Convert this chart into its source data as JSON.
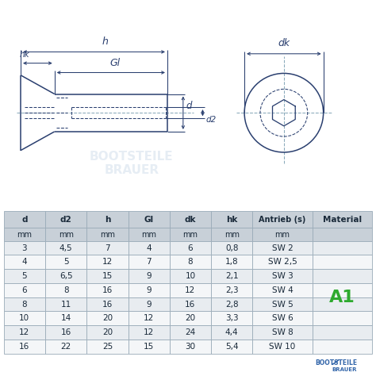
{
  "bg_color": "#ffffff",
  "line_color": "#2a3f6f",
  "table_header_bg": "#c8d0d8",
  "table_row_alt_bg": "#e8ecf0",
  "table_row_bg": "#f4f6f8",
  "table_border_color": "#9aabb8",
  "columns": [
    "d",
    "d2",
    "h",
    "Gl",
    "dk",
    "hk",
    "Antrieb (s)",
    "Material"
  ],
  "col_units": [
    "mm",
    "mm",
    "mm",
    "mm",
    "mm",
    "mm",
    "mm",
    ""
  ],
  "rows": [
    [
      "3",
      "4,5",
      "7",
      "4",
      "6",
      "0,8",
      "SW 2",
      ""
    ],
    [
      "4",
      "5",
      "12",
      "7",
      "8",
      "1,8",
      "SW 2,5",
      ""
    ],
    [
      "5",
      "6,5",
      "15",
      "9",
      "10",
      "2,1",
      "SW 3",
      ""
    ],
    [
      "6",
      "8",
      "16",
      "9",
      "12",
      "2,3",
      "SW 4",
      "A1"
    ],
    [
      "8",
      "11",
      "16",
      "9",
      "16",
      "2,8",
      "SW 5",
      ""
    ],
    [
      "10",
      "14",
      "20",
      "12",
      "20",
      "3,3",
      "SW 6",
      ""
    ],
    [
      "12",
      "16",
      "20",
      "12",
      "24",
      "4,4",
      "SW 8",
      ""
    ],
    [
      "16",
      "22",
      "25",
      "15",
      "30",
      "5,4",
      "SW 10",
      ""
    ]
  ],
  "a1_color": "#2eaa2e",
  "diagram_color": "#2a3f6f",
  "crosshair_color": "#8aaabb",
  "col_widths": [
    0.9,
    0.9,
    0.9,
    0.9,
    0.9,
    0.9,
    1.3,
    1.3
  ]
}
